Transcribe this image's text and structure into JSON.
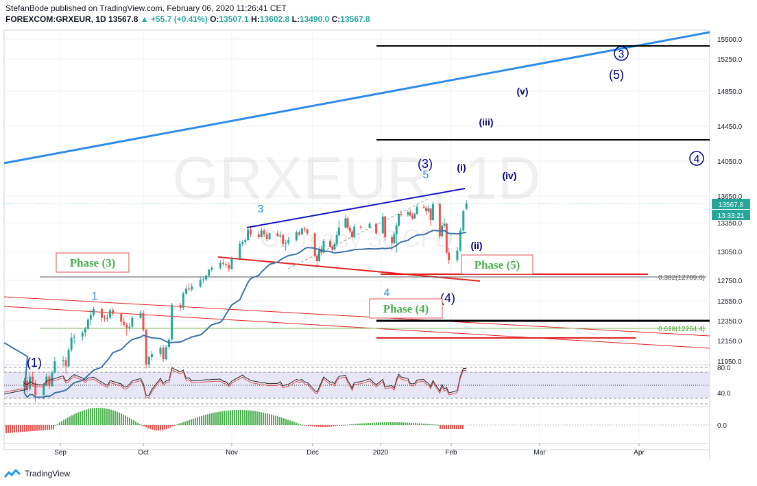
{
  "header": {
    "line1": "StefanBode published on TradingView.com, February 06, 2020 11:26:41 CET",
    "symbol": "FOREXCOM:GRXEUR, 1D",
    "last": "13567.8",
    "arrow": "▲",
    "change": "+55.7 (+0.41%)",
    "o_label": "O:",
    "o": "13507.1",
    "h_label": "H:",
    "h": "13602.8",
    "l_label": "L:",
    "l": "13490.0",
    "c_label": "C:",
    "c": "13567.8"
  },
  "footer": {
    "brand": "TradingView"
  },
  "watermark": {
    "line1": "GRXEUR, 1D",
    "line2": "Germany 30 CFD"
  },
  "colors": {
    "up": "#26a69a",
    "down": "#ef5350",
    "trend_blue": "#2e8ae6",
    "navy": "#000080",
    "red_line": "#e02020",
    "ma": "#3d72a8",
    "label_green": "#4caf50",
    "label_box": "#e05050"
  },
  "chart_data": [
    {
      "type": "candlestick",
      "title": "FOREXCOM:GRXEUR, 1D",
      "y_ticks": [
        11950,
        12150,
        12350,
        12550,
        12750,
        13050,
        13350,
        13650,
        14050,
        14450,
        14850,
        15250,
        15500
      ],
      "y_tick_labels": [
        "11950.0",
        "12150.0",
        "12350.0",
        "12550.0",
        "12750.0",
        "13050.0",
        "13350.0",
        "13650.0",
        "14050.0",
        "14450.0",
        "14850.0",
        "15250.0",
        "15500.0"
      ],
      "x_ticks": [
        "Sep",
        "Oct",
        "Nov",
        "Dec",
        "2020",
        "Feb",
        "Mar",
        "Apr"
      ],
      "x_tick_dates": [
        "2019-09-01",
        "2019-10-01",
        "2019-11-01",
        "2019-12-01",
        "2020-01-01",
        "2020-02-01",
        "2020-03-01",
        "2020-04-01"
      ],
      "x_range": [
        "2019-08-01",
        "2020-04-25"
      ],
      "price_badge": "13567.8",
      "time_badge": "13:33:21",
      "fib_levels": [
        {
          "label": "0.382(12789.0)",
          "value": 12789.0
        },
        {
          "label": "0.618(12264.4)",
          "value": 12264.4
        }
      ],
      "wave_labels": [
        {
          "text": "(1)",
          "date": "2019-08-10",
          "price": 11950,
          "color": "navy"
        },
        {
          "text": "1",
          "date": "2019-09-13",
          "price": 12590,
          "color": "blue"
        },
        {
          "text": "3",
          "date": "2019-11-11",
          "price": 13480,
          "color": "blue"
        },
        {
          "text": "4",
          "date": "2020-01-06",
          "price": 12620,
          "color": "blue"
        },
        {
          "text": "5",
          "date": "2020-01-22",
          "price": 13900,
          "color": "blue"
        },
        {
          "text": "(3)",
          "date": "2020-01-20",
          "price": 14030,
          "color": "navy"
        },
        {
          "text": "(4)",
          "date": "2020-01-29",
          "price": 12580,
          "color": "navy"
        },
        {
          "text": "(i)",
          "date": "2020-02-05",
          "price": 13980,
          "color": "navy"
        },
        {
          "text": "(ii)",
          "date": "2020-02-10",
          "price": 13270,
          "color": "navy"
        },
        {
          "text": "(iii)",
          "date": "2020-02-15",
          "price": 14530,
          "color": "navy"
        },
        {
          "text": "(iv)",
          "date": "2020-02-22",
          "price": 13910,
          "color": "navy"
        },
        {
          "text": "(v)",
          "date": "2020-03-02",
          "price": 14880,
          "color": "navy"
        },
        {
          "text": "(5)",
          "date": "2020-03-27",
          "price": 15150,
          "color": "navy"
        },
        {
          "text": "3",
          "date": "2020-03-29",
          "price": 15430,
          "color": "navy",
          "circled": true
        },
        {
          "text": "4",
          "date": "2020-04-20",
          "price": 14080,
          "color": "navy",
          "circled": true
        }
      ],
      "phase_labels": [
        {
          "text": "Phase (3)",
          "date": "2019-08-18",
          "price": 12950
        },
        {
          "text": "Phase (4)",
          "date": "2020-01-07",
          "price": 12490
        },
        {
          "text": "Phase (5)",
          "date": "2020-02-09",
          "price": 12940
        }
      ],
      "ohlc": [
        [
          "2019-08-19",
          11700,
          11790,
          11650,
          11760
        ],
        [
          "2019-08-20",
          11760,
          11800,
          11640,
          11680
        ],
        [
          "2019-08-21",
          11680,
          11830,
          11660,
          11800
        ],
        [
          "2019-08-22",
          11800,
          11850,
          11700,
          11740
        ],
        [
          "2019-08-23",
          11740,
          11770,
          11550,
          11620
        ],
        [
          "2019-08-26",
          11620,
          11740,
          11580,
          11720
        ],
        [
          "2019-08-27",
          11720,
          11830,
          11700,
          11800
        ],
        [
          "2019-08-28",
          11800,
          11820,
          11680,
          11710
        ],
        [
          "2019-08-29",
          11710,
          11860,
          11700,
          11840
        ],
        [
          "2019-08-30",
          11840,
          11990,
          11830,
          11950
        ],
        [
          "2019-09-02",
          11950,
          12000,
          11900,
          11960
        ],
        [
          "2019-09-03",
          11960,
          11990,
          11830,
          11900
        ],
        [
          "2019-09-04",
          11900,
          12080,
          11890,
          12060
        ],
        [
          "2019-09-05",
          12060,
          12230,
          12040,
          12180
        ],
        [
          "2019-09-06",
          12180,
          12220,
          12120,
          12190
        ],
        [
          "2019-09-09",
          12190,
          12250,
          12150,
          12230
        ],
        [
          "2019-09-10",
          12230,
          12290,
          12190,
          12270
        ],
        [
          "2019-09-11",
          12270,
          12380,
          12260,
          12360
        ],
        [
          "2019-09-12",
          12360,
          12460,
          12300,
          12410
        ],
        [
          "2019-09-13",
          12410,
          12490,
          12390,
          12470
        ],
        [
          "2019-09-16",
          12470,
          12480,
          12340,
          12380
        ],
        [
          "2019-09-17",
          12380,
          12410,
          12340,
          12370
        ],
        [
          "2019-09-18",
          12370,
          12420,
          12340,
          12380
        ],
        [
          "2019-09-19",
          12380,
          12480,
          12360,
          12460
        ],
        [
          "2019-09-20",
          12460,
          12480,
          12400,
          12420
        ],
        [
          "2019-09-23",
          12420,
          12430,
          12300,
          12340
        ],
        [
          "2019-09-24",
          12340,
          12380,
          12290,
          12310
        ],
        [
          "2019-09-25",
          12310,
          12330,
          12200,
          12280
        ],
        [
          "2019-09-26",
          12280,
          12330,
          12250,
          12290
        ],
        [
          "2019-09-27",
          12290,
          12400,
          12270,
          12380
        ],
        [
          "2019-09-30",
          12380,
          12460,
          12370,
          12430
        ],
        [
          "2019-10-01",
          12430,
          12460,
          12240,
          12260
        ],
        [
          "2019-10-02",
          12260,
          12270,
          11880,
          11920
        ],
        [
          "2019-10-03",
          11920,
          12010,
          11890,
          11990
        ],
        [
          "2019-10-04",
          11990,
          12050,
          11960,
          12020
        ],
        [
          "2019-10-07",
          12020,
          12100,
          11990,
          12080
        ],
        [
          "2019-10-08",
          12080,
          12110,
          11940,
          11970
        ],
        [
          "2019-10-09",
          11970,
          12110,
          11960,
          12090
        ],
        [
          "2019-10-10",
          12090,
          12180,
          12060,
          12160
        ],
        [
          "2019-10-11",
          12160,
          12530,
          12150,
          12510
        ],
        [
          "2019-10-14",
          12510,
          12530,
          12450,
          12480
        ],
        [
          "2019-10-15",
          12480,
          12640,
          12460,
          12620
        ],
        [
          "2019-10-16",
          12620,
          12700,
          12610,
          12670
        ],
        [
          "2019-10-17",
          12670,
          12720,
          12640,
          12660
        ],
        [
          "2019-10-18",
          12660,
          12720,
          12640,
          12690
        ],
        [
          "2019-10-21",
          12690,
          12780,
          12680,
          12750
        ],
        [
          "2019-10-22",
          12750,
          12790,
          12720,
          12760
        ],
        [
          "2019-10-23",
          12760,
          12810,
          12740,
          12800
        ],
        [
          "2019-10-24",
          12800,
          12870,
          12790,
          12860
        ],
        [
          "2019-10-25",
          12860,
          12900,
          12840,
          12880
        ],
        [
          "2019-10-28",
          12880,
          12960,
          12860,
          12930
        ],
        [
          "2019-10-29",
          12930,
          12970,
          12900,
          12920
        ],
        [
          "2019-10-30",
          12920,
          12940,
          12880,
          12910
        ],
        [
          "2019-10-31",
          12910,
          12940,
          12840,
          12870
        ],
        [
          "2019-11-01",
          12870,
          13000,
          12860,
          12980
        ],
        [
          "2019-11-04",
          12980,
          13160,
          12960,
          13130
        ],
        [
          "2019-11-05",
          13130,
          13170,
          13100,
          13150
        ],
        [
          "2019-11-06",
          13150,
          13190,
          13120,
          13170
        ],
        [
          "2019-11-07",
          13170,
          13300,
          13160,
          13280
        ],
        [
          "2019-11-08",
          13280,
          13300,
          13200,
          13230
        ],
        [
          "2019-11-11",
          13230,
          13260,
          13180,
          13200
        ],
        [
          "2019-11-12",
          13200,
          13300,
          13190,
          13270
        ],
        [
          "2019-11-13",
          13270,
          13290,
          13200,
          13230
        ],
        [
          "2019-11-14",
          13230,
          13260,
          13160,
          13180
        ],
        [
          "2019-11-15",
          13180,
          13250,
          13170,
          13240
        ],
        [
          "2019-11-18",
          13240,
          13270,
          13200,
          13210
        ],
        [
          "2019-11-19",
          13210,
          13260,
          13190,
          13220
        ],
        [
          "2019-11-20",
          13220,
          13240,
          13100,
          13130
        ],
        [
          "2019-11-21",
          13130,
          13170,
          13060,
          13140
        ],
        [
          "2019-11-22",
          13140,
          13200,
          13120,
          13170
        ],
        [
          "2019-11-25",
          13170,
          13270,
          13160,
          13250
        ],
        [
          "2019-11-26",
          13250,
          13270,
          13210,
          13230
        ],
        [
          "2019-11-27",
          13230,
          13300,
          13220,
          13290
        ],
        [
          "2019-11-28",
          13290,
          13310,
          13250,
          13280
        ],
        [
          "2019-11-29",
          13280,
          13290,
          13220,
          13240
        ],
        [
          "2019-12-02",
          13240,
          13250,
          12990,
          13010
        ],
        [
          "2019-12-03",
          13010,
          13030,
          12880,
          12950
        ],
        [
          "2019-12-04",
          12950,
          13100,
          12940,
          13080
        ],
        [
          "2019-12-05",
          13080,
          13110,
          13010,
          13040
        ],
        [
          "2019-12-06",
          13040,
          13180,
          13030,
          13160
        ],
        [
          "2019-12-09",
          13160,
          13180,
          13090,
          13100
        ],
        [
          "2019-12-10",
          13100,
          13120,
          13050,
          13070
        ],
        [
          "2019-12-11",
          13070,
          13150,
          13060,
          13130
        ],
        [
          "2019-12-12",
          13130,
          13260,
          13100,
          13220
        ],
        [
          "2019-12-13",
          13220,
          13380,
          13210,
          13300
        ],
        [
          "2019-12-16",
          13300,
          13440,
          13290,
          13400
        ],
        [
          "2019-12-17",
          13400,
          13420,
          13280,
          13300
        ],
        [
          "2019-12-18",
          13300,
          13330,
          13240,
          13260
        ],
        [
          "2019-12-19",
          13260,
          13280,
          13180,
          13200
        ],
        [
          "2019-12-20",
          13200,
          13340,
          13190,
          13310
        ],
        [
          "2019-12-23",
          13310,
          13330,
          13280,
          13300
        ],
        [
          "2019-12-27",
          13300,
          13360,
          13290,
          13340
        ],
        [
          "2019-12-30",
          13340,
          13350,
          13220,
          13240
        ],
        [
          "2020-01-02",
          13240,
          13460,
          13230,
          13420
        ],
        [
          "2020-01-03",
          13420,
          13430,
          13160,
          13200
        ],
        [
          "2020-01-06",
          13200,
          13220,
          13060,
          13140
        ],
        [
          "2020-01-07",
          13140,
          13260,
          13130,
          13230
        ],
        [
          "2020-01-08",
          13230,
          13350,
          13040,
          13320
        ],
        [
          "2020-01-09",
          13320,
          13460,
          13310,
          13450
        ],
        [
          "2020-01-10",
          13450,
          13490,
          13420,
          13440
        ],
        [
          "2020-01-13",
          13440,
          13490,
          13420,
          13470
        ],
        [
          "2020-01-14",
          13470,
          13500,
          13420,
          13430
        ],
        [
          "2020-01-15",
          13430,
          13460,
          13380,
          13400
        ],
        [
          "2020-01-16",
          13400,
          13460,
          13390,
          13450
        ],
        [
          "2020-01-17",
          13450,
          13560,
          13440,
          13530
        ],
        [
          "2020-01-20",
          13530,
          13560,
          13510,
          13520
        ],
        [
          "2020-01-21",
          13520,
          13540,
          13440,
          13480
        ],
        [
          "2020-01-22",
          13480,
          13550,
          13460,
          13510
        ],
        [
          "2020-01-23",
          13510,
          13520,
          13320,
          13380
        ],
        [
          "2020-01-24",
          13380,
          13590,
          13370,
          13560
        ],
        [
          "2020-01-27",
          13560,
          13570,
          13180,
          13210
        ],
        [
          "2020-01-28",
          13210,
          13350,
          13190,
          13320
        ],
        [
          "2020-01-29",
          13320,
          13400,
          13300,
          13340
        ],
        [
          "2020-01-30",
          13340,
          13350,
          13020,
          13040
        ],
        [
          "2020-01-31",
          13040,
          13090,
          12920,
          12960
        ],
        [
          "2020-02-03",
          12960,
          13100,
          12940,
          13060
        ],
        [
          "2020-02-04",
          13060,
          13300,
          13050,
          13270
        ],
        [
          "2020-02-05",
          13270,
          13500,
          13260,
          13480
        ],
        [
          "2020-02-06",
          13507.1,
          13602.8,
          13490.0,
          13567.8
        ]
      ]
    },
    {
      "type": "line",
      "name_hidden": true,
      "panel": "oscillator",
      "y_tick_labels": [
        "80.0",
        "40.0"
      ],
      "y_ticks": [
        80,
        40
      ],
      "bands": [
        85,
        80,
        65,
        40,
        32,
        27
      ]
    },
    {
      "type": "bar",
      "panel": "histogram",
      "y_tick_labels": [
        "0.0"
      ],
      "y_ticks": [
        0
      ]
    }
  ]
}
